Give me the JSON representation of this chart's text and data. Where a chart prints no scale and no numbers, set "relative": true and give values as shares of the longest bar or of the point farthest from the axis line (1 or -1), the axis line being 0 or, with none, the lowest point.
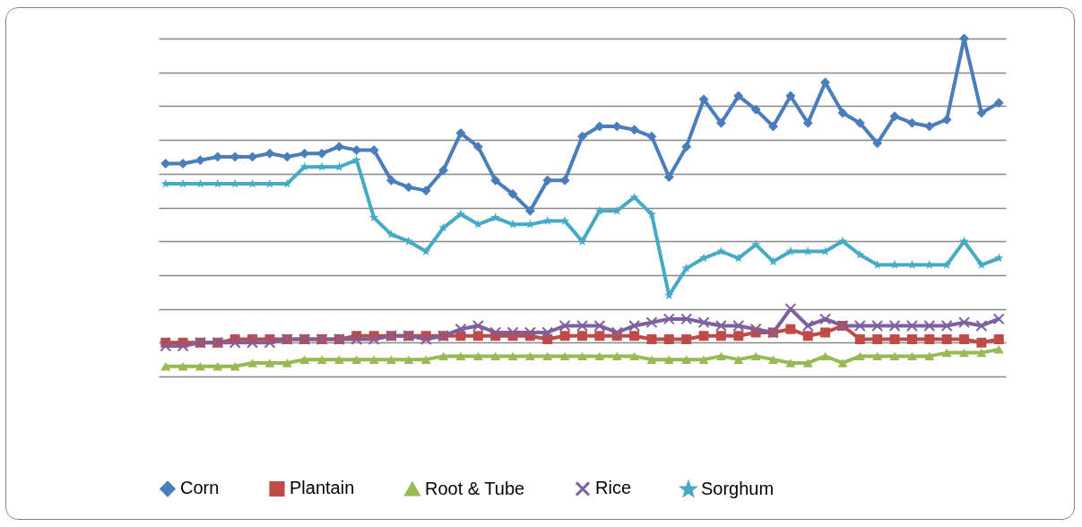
{
  "chart_data": {
    "type": "line",
    "relative": true,
    "grid": "y",
    "legend": "bottom",
    "tick_labels": false,
    "line_style": "solid",
    "categories": [
      null,
      null,
      null,
      null,
      null,
      null,
      null,
      null,
      null,
      null,
      null,
      null,
      null,
      null,
      null,
      null,
      null,
      null,
      null,
      null,
      null,
      null,
      null,
      null,
      null,
      null,
      null,
      null,
      null,
      null,
      null,
      null,
      null,
      null,
      null,
      null,
      null,
      null,
      null,
      null,
      null,
      null,
      null,
      null,
      null,
      null,
      null,
      null,
      null
    ],
    "series": [
      {
        "name": "Corn",
        "color": "#4a7ebb",
        "marker": "diamond",
        "values": [
          0.63,
          0.63,
          0.64,
          0.65,
          0.65,
          0.65,
          0.66,
          0.65,
          0.66,
          0.66,
          0.68,
          0.67,
          0.67,
          0.58,
          0.56,
          0.55,
          0.61,
          0.72,
          0.68,
          0.58,
          0.54,
          0.49,
          0.58,
          0.58,
          0.71,
          0.74,
          0.74,
          0.73,
          0.71,
          0.59,
          0.68,
          0.82,
          0.75,
          0.83,
          0.79,
          0.74,
          0.83,
          0.75,
          0.87,
          0.78,
          0.75,
          0.69,
          0.77,
          0.75,
          0.74,
          0.76,
          1,
          0.78,
          0.81
        ]
      },
      {
        "name": "Plantain",
        "color": "#be4b48",
        "marker": "square",
        "values": [
          0.1,
          0.1,
          0.1,
          0.1,
          0.11,
          0.11,
          0.11,
          0.11,
          0.11,
          0.11,
          0.11,
          0.12,
          0.12,
          0.12,
          0.12,
          0.12,
          0.12,
          0.12,
          0.12,
          0.12,
          0.12,
          0.12,
          0.11,
          0.12,
          0.12,
          0.12,
          0.12,
          0.12,
          0.11,
          0.11,
          0.11,
          0.12,
          0.12,
          0.12,
          0.13,
          0.13,
          0.14,
          0.12,
          0.13,
          0.15,
          0.11,
          0.11,
          0.11,
          0.11,
          0.11,
          0.11,
          0.11,
          0.1,
          0.11
        ]
      },
      {
        "name": "Root & Tube",
        "color": "#98b954",
        "marker": "triangle",
        "values": [
          0.03,
          0.03,
          0.03,
          0.03,
          0.03,
          0.04,
          0.04,
          0.04,
          0.05,
          0.05,
          0.05,
          0.05,
          0.05,
          0.05,
          0.05,
          0.05,
          0.06,
          0.06,
          0.06,
          0.06,
          0.06,
          0.06,
          0.06,
          0.06,
          0.06,
          0.06,
          0.06,
          0.06,
          0.05,
          0.05,
          0.05,
          0.05,
          0.06,
          0.05,
          0.06,
          0.05,
          0.04,
          0.04,
          0.06,
          0.04,
          0.06,
          0.06,
          0.06,
          0.06,
          0.06,
          0.07,
          0.07,
          0.07,
          0.08
        ]
      },
      {
        "name": "Rice",
        "color": "#7d60a0",
        "marker": "cross",
        "values": [
          0.09,
          0.09,
          0.1,
          0.1,
          0.1,
          0.1,
          0.1,
          0.11,
          0.11,
          0.11,
          0.11,
          0.11,
          0.11,
          0.12,
          0.12,
          0.11,
          0.12,
          0.14,
          0.15,
          0.13,
          0.13,
          0.13,
          0.13,
          0.15,
          0.15,
          0.15,
          0.13,
          0.15,
          0.16,
          0.17,
          0.17,
          0.16,
          0.15,
          0.15,
          0.14,
          0.13,
          0.2,
          0.15,
          0.17,
          0.15,
          0.15,
          0.15,
          0.15,
          0.15,
          0.15,
          0.15,
          0.16,
          0.15,
          0.17
        ]
      },
      {
        "name": "Sorghum",
        "color": "#46aac5",
        "marker": "star",
        "values": [
          0.57,
          0.57,
          0.57,
          0.57,
          0.57,
          0.57,
          0.57,
          0.57,
          0.62,
          0.62,
          0.62,
          0.64,
          0.47,
          0.42,
          0.4,
          0.37,
          0.44,
          0.48,
          0.45,
          0.47,
          0.45,
          0.45,
          0.46,
          0.46,
          0.4,
          0.49,
          0.49,
          0.53,
          0.48,
          0.24,
          0.32,
          0.35,
          0.37,
          0.35,
          0.39,
          0.34,
          0.37,
          0.37,
          0.37,
          0.4,
          0.36,
          0.33,
          0.33,
          0.33,
          0.33,
          0.33,
          0.4,
          0.33,
          0.35
        ]
      }
    ]
  }
}
